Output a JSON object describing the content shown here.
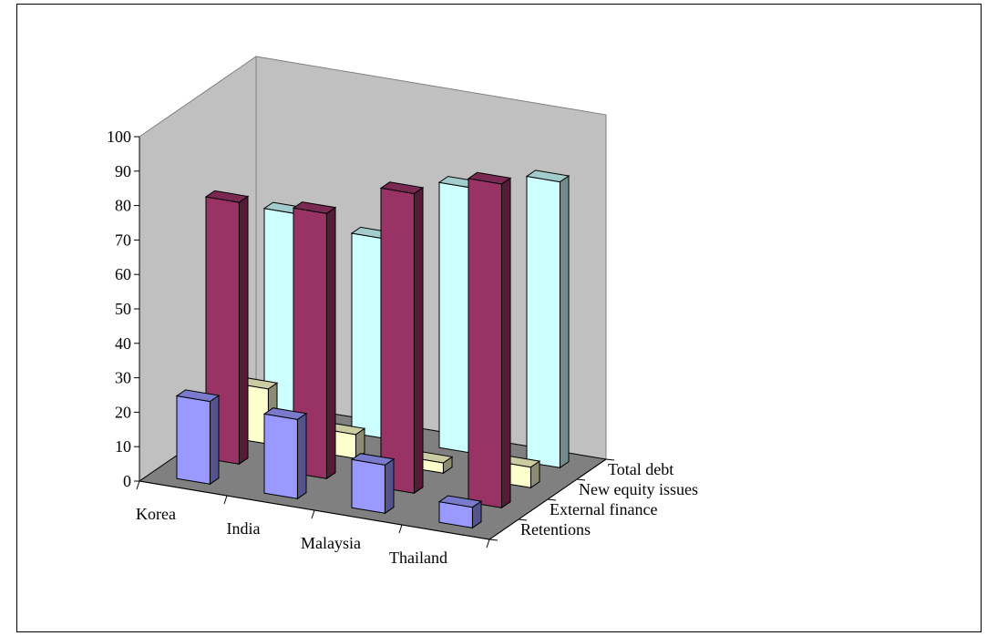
{
  "chart_data": {
    "type": "bar",
    "subtype": "3d-column",
    "categories": [
      "Korea",
      "India",
      "Malaysia",
      "Thailand"
    ],
    "series": [
      {
        "name": "Retentions",
        "values": [
          24,
          23,
          14,
          6
        ],
        "color": "#9999ff"
      },
      {
        "name": "External finance",
        "values": [
          76,
          77,
          87,
          94
        ],
        "color": "#993366"
      },
      {
        "name": "New equity issues",
        "values": [
          16,
          7,
          3,
          6
        ],
        "color": "#ffffcc"
      },
      {
        "name": "Total debt",
        "values": [
          61,
          58,
          77,
          83
        ],
        "color": "#ccffff"
      }
    ],
    "yaxis": {
      "min": 0,
      "max": 100,
      "step": 10
    },
    "ylim": [
      0,
      100
    ],
    "grid": false,
    "walls": {
      "back": "#c0c0c0",
      "floor": "#808080"
    }
  }
}
